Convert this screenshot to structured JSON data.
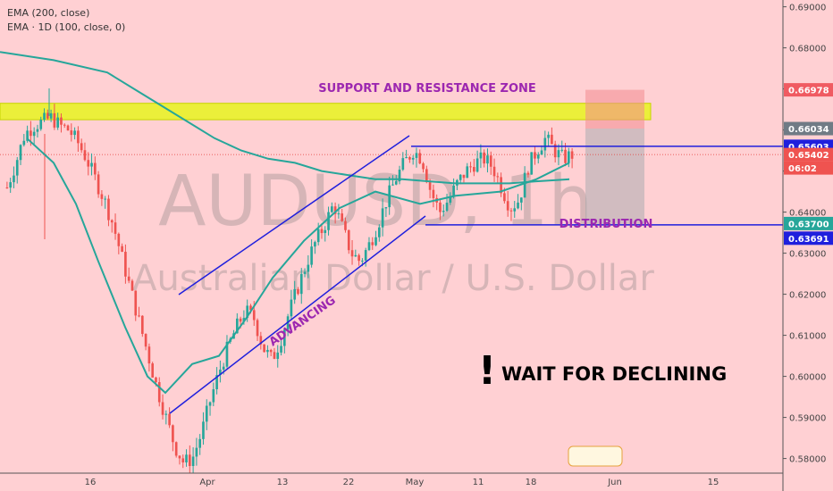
{
  "indicators": [
    "EMA (200, close)",
    "EMA · 1D (100, close, 0)"
  ],
  "watermark": {
    "symbol": "AUDUSD, 1h",
    "name": "Australian Dollar / U.S. Dollar"
  },
  "annotations": {
    "zone": "SUPPORT AND RESISTANCE ZONE",
    "advancing": "ADVANCING",
    "distribution": "DISTRIBUTION",
    "wait": "WAIT FOR DECLINING",
    "exclaim": "!"
  },
  "colors": {
    "background": "#ffd0d3",
    "up": "#26a69a",
    "down": "#ef5350",
    "ema": "#26a69a",
    "channel": "#1f1fdd",
    "zone": "#e8f51f",
    "label": "#9c27b0",
    "price_tags": "#1f1fdd"
  },
  "chart_data": {
    "type": "candlestick",
    "symbol": "AUDUSD",
    "interval": "1h",
    "ylim": [
      0.574,
      0.691
    ],
    "y_ticks": [
      "0.69000",
      "0.68000",
      "0.67000",
      "0.66000",
      "0.65000",
      "0.64000",
      "0.63000",
      "0.62000",
      "0.61000",
      "0.60000",
      "0.59000",
      "0.58000"
    ],
    "x_ticks": [
      "16",
      "Apr",
      "13",
      "22",
      "May",
      "11",
      "18",
      "Jun",
      "15"
    ],
    "price_tags": [
      {
        "label": "0.66978",
        "kind": "target"
      },
      {
        "label": "0.66034",
        "kind": "entry"
      },
      {
        "label": "0.65603",
        "kind": "line"
      },
      {
        "label": "0.65402",
        "kind": "last"
      },
      {
        "label": "06:02",
        "kind": "countdown"
      },
      {
        "label": "0.63700",
        "kind": "stop"
      },
      {
        "label": "0.63691",
        "kind": "line"
      }
    ],
    "zone_range": [
      0.6625,
      0.6665
    ],
    "distribution_lines": [
      0.65603,
      0.63691
    ],
    "position": {
      "target": 0.66978,
      "entry": 0.66034,
      "stop": 0.637
    },
    "close_path": [
      0.646,
      0.652,
      0.659,
      0.661,
      0.662,
      0.663,
      0.661,
      0.66,
      0.657,
      0.653,
      0.648,
      0.643,
      0.637,
      0.629,
      0.621,
      0.613,
      0.605,
      0.597,
      0.59,
      0.583,
      0.579,
      0.58,
      0.586,
      0.594,
      0.601,
      0.607,
      0.612,
      0.616,
      0.614,
      0.607,
      0.604,
      0.609,
      0.616,
      0.622,
      0.628,
      0.633,
      0.637,
      0.642,
      0.636,
      0.63,
      0.628,
      0.632,
      0.637,
      0.643,
      0.648,
      0.652,
      0.655,
      0.653,
      0.645,
      0.64,
      0.643,
      0.647,
      0.65,
      0.652,
      0.653,
      0.651,
      0.646,
      0.641,
      0.643,
      0.651,
      0.655,
      0.658,
      0.655,
      0.653,
      0.654
    ],
    "ema_200": [
      0.679,
      0.677,
      0.674,
      0.67,
      0.666,
      0.662,
      0.658,
      0.655,
      0.653,
      0.652,
      0.65,
      0.649,
      0.648,
      0.648,
      0.6475,
      0.647,
      0.647,
      0.647,
      0.6475,
      0.648
    ],
    "ema_100_1d": [
      0.658,
      0.652,
      0.642,
      0.628,
      0.612,
      0.6,
      0.596,
      0.603,
      0.605,
      0.614,
      0.624,
      0.633,
      0.641,
      0.645,
      0.642,
      0.644,
      0.645,
      0.648,
      0.652
    ]
  }
}
